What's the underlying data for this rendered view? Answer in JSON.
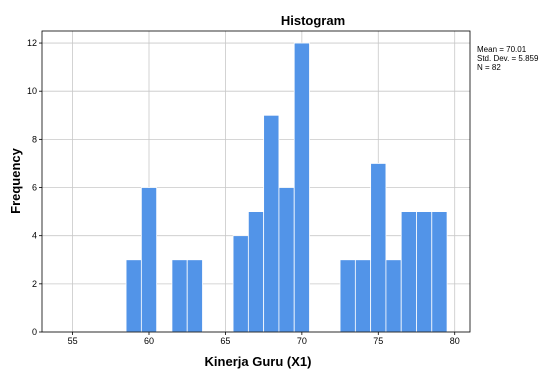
{
  "chart_data": {
    "type": "bar",
    "title": "Histogram",
    "xlabel": "Kinerja Guru (X1)",
    "ylabel": "Frequency",
    "xlim": [
      53,
      81
    ],
    "ylim": [
      0,
      12.5
    ],
    "x_ticks": [
      55,
      60,
      65,
      70,
      75,
      80
    ],
    "y_ticks": [
      0,
      2,
      4,
      6,
      8,
      10,
      12
    ],
    "bin_width": 1,
    "bins": [
      {
        "start": 58.5,
        "value": 3
      },
      {
        "start": 59.5,
        "value": 6
      },
      {
        "start": 61.5,
        "value": 3
      },
      {
        "start": 62.5,
        "value": 3
      },
      {
        "start": 65.5,
        "value": 4
      },
      {
        "start": 66.5,
        "value": 5
      },
      {
        "start": 67.5,
        "value": 9
      },
      {
        "start": 68.5,
        "value": 6
      },
      {
        "start": 69.5,
        "value": 12
      },
      {
        "start": 72.5,
        "value": 3
      },
      {
        "start": 73.5,
        "value": 3
      },
      {
        "start": 74.5,
        "value": 7
      },
      {
        "start": 75.5,
        "value": 3
      },
      {
        "start": 76.5,
        "value": 5
      },
      {
        "start": 77.5,
        "value": 5
      },
      {
        "start": 78.5,
        "value": 5
      }
    ],
    "grid": true,
    "legend_placement": "right",
    "bar_color": "#5294e8",
    "bar_edge_color": "#ffffff",
    "grid_color": "#c8c8c8"
  },
  "stats": {
    "mean": "Mean = 70.01",
    "std": "Std. Dev. = 5.859",
    "n": "N = 82"
  }
}
